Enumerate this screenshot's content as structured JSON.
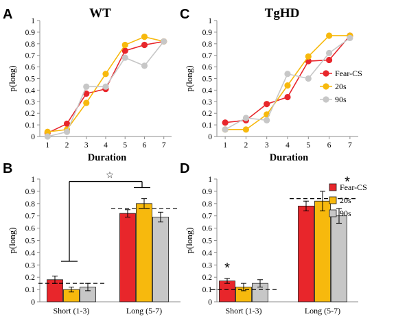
{
  "colors": {
    "fear": "#e8262b",
    "s20": "#f7b90d",
    "s90": "#c7c7c7",
    "axis": "#8c8c8c",
    "text": "#000000"
  },
  "chart_data": [
    {
      "panel": "A",
      "title": "WT",
      "type": "line",
      "xlabel": "Duration",
      "ylabel": "p(long)",
      "x": [
        1,
        2,
        3,
        4,
        5,
        6,
        7
      ],
      "xlim": [
        0.6,
        7.4
      ],
      "ylim": [
        0,
        1
      ],
      "yticks": [
        "0",
        "0.1",
        "0.2",
        "0.3",
        "0.4",
        "0.5",
        "0.6",
        "0.7",
        "0.8",
        "0.9",
        "1"
      ],
      "xticks": [
        "1",
        "2",
        "3",
        "4",
        "5",
        "6",
        "7"
      ],
      "series": [
        {
          "key": "fear",
          "values": [
            0.03,
            0.11,
            0.37,
            0.41,
            0.74,
            0.79,
            0.82
          ]
        },
        {
          "key": "s20",
          "values": [
            0.04,
            0.06,
            0.29,
            0.54,
            0.79,
            0.86,
            0.82
          ]
        },
        {
          "key": "s90",
          "values": [
            0.0,
            0.04,
            0.43,
            0.43,
            0.68,
            0.61,
            0.82
          ]
        }
      ]
    },
    {
      "panel": "C",
      "title": "TgHD",
      "type": "line",
      "xlabel": "Duration",
      "ylabel": "p(long)",
      "x": [
        1,
        2,
        3,
        4,
        5,
        6,
        7
      ],
      "xlim": [
        0.6,
        7.4
      ],
      "ylim": [
        0,
        1
      ],
      "yticks": [
        "0",
        "0.1",
        "0.2",
        "0.3",
        "0.4",
        "0.5",
        "0.6",
        "0.7",
        "0.8",
        "0.9",
        "1"
      ],
      "xticks": [
        "1",
        "2",
        "3",
        "4",
        "5",
        "6",
        "7"
      ],
      "legend": [
        "Fear-CS",
        "20s",
        "90s"
      ],
      "series": [
        {
          "key": "fear",
          "name": "Fear-CS",
          "values": [
            0.12,
            0.14,
            0.28,
            0.34,
            0.65,
            0.66,
            0.87
          ]
        },
        {
          "key": "s20",
          "name": "20s",
          "values": [
            0.06,
            0.06,
            0.19,
            0.44,
            0.69,
            0.87,
            0.87
          ]
        },
        {
          "key": "s90",
          "name": "90s",
          "values": [
            0.06,
            0.16,
            0.14,
            0.54,
            0.5,
            0.72,
            0.85
          ]
        }
      ]
    },
    {
      "panel": "B",
      "type": "bar",
      "ylabel": "p(long)",
      "ylim": [
        0,
        1
      ],
      "yticks": [
        "0",
        "0.1",
        "0.2",
        "0.3",
        "0.4",
        "0.5",
        "0.6",
        "0.7",
        "0.8",
        "0.9",
        "1"
      ],
      "categories": [
        "Short (1-3)",
        "Long (5-7)"
      ],
      "series": [
        {
          "key": "fear",
          "values": [
            0.18,
            0.72
          ],
          "errors": [
            0.03,
            0.03
          ]
        },
        {
          "key": "s20",
          "values": [
            0.1,
            0.8
          ],
          "errors": [
            0.02,
            0.04
          ]
        },
        {
          "key": "s90",
          "values": [
            0.12,
            0.69
          ],
          "errors": [
            0.03,
            0.04
          ]
        }
      ],
      "reference_lines": [
        0.15,
        0.76
      ],
      "annotations": [
        "☆"
      ]
    },
    {
      "panel": "D",
      "type": "bar",
      "ylabel": "p(long)",
      "ylim": [
        0,
        1
      ],
      "yticks": [
        "0",
        "0.1",
        "0.2",
        "0.3",
        "0.4",
        "0.5",
        "0.6",
        "0.7",
        "0.8",
        "0.9",
        "1"
      ],
      "categories": [
        "Short (1-3)",
        "Long (5-7)"
      ],
      "legend": [
        "Fear-CS",
        "20s",
        "90s"
      ],
      "series": [
        {
          "key": "fear",
          "name": "Fear-CS",
          "values": [
            0.17,
            0.78
          ],
          "errors": [
            0.02,
            0.04
          ]
        },
        {
          "key": "s20",
          "name": "20s",
          "values": [
            0.12,
            0.82
          ],
          "errors": [
            0.03,
            0.08
          ]
        },
        {
          "key": "s90",
          "name": "90s",
          "values": [
            0.15,
            0.7
          ],
          "errors": [
            0.03,
            0.06
          ]
        }
      ],
      "reference_lines": [
        0.1,
        0.84
      ],
      "annotations": [
        "*",
        "*"
      ]
    }
  ]
}
